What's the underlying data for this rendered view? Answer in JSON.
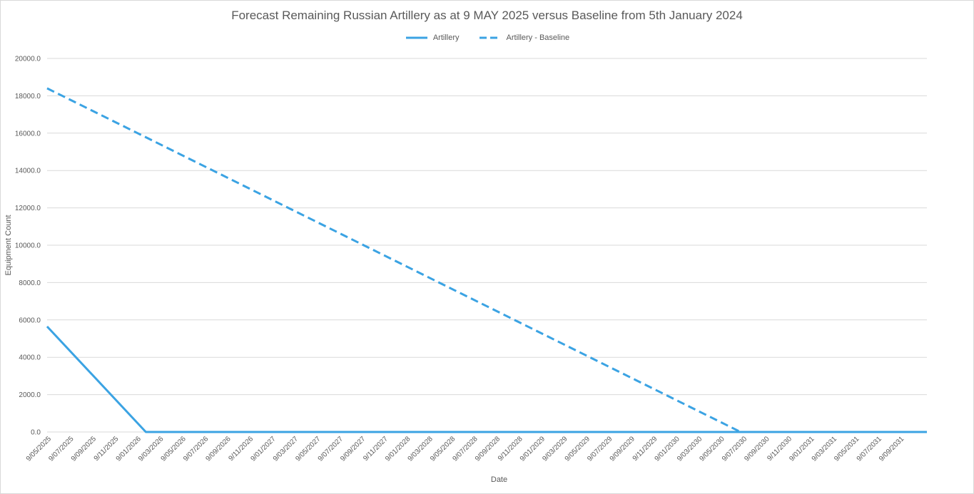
{
  "chart_data": {
    "type": "line",
    "title": "Forecast Remaining Russian Artillery as at 9 MAY 2025 versus Baseline from 5th January 2024",
    "xlabel": "Date",
    "ylabel": "Equipment Count",
    "ylim": [
      0,
      20000
    ],
    "yticks": [
      "0.0",
      "2000.0",
      "4000.0",
      "6000.0",
      "8000.0",
      "10000.0",
      "12000.0",
      "14000.0",
      "16000.0",
      "18000.0",
      "20000.0"
    ],
    "ytick_values": [
      0,
      2000,
      4000,
      6000,
      8000,
      10000,
      12000,
      14000,
      16000,
      18000,
      20000
    ],
    "categories": [
      "9/05/2025",
      "9/07/2025",
      "9/09/2025",
      "9/11/2025",
      "9/01/2026",
      "9/03/2026",
      "9/05/2026",
      "9/07/2026",
      "9/09/2026",
      "9/11/2026",
      "9/01/2027",
      "9/03/2027",
      "9/05/2027",
      "9/07/2027",
      "9/09/2027",
      "9/11/2027",
      "9/01/2028",
      "9/03/2028",
      "9/05/2028",
      "9/07/2028",
      "9/09/2028",
      "9/11/2028",
      "9/01/2029",
      "9/03/2029",
      "9/05/2029",
      "9/07/2029",
      "9/09/2029",
      "9/11/2029",
      "9/01/2030",
      "9/03/2030",
      "9/05/2030",
      "9/07/2030",
      "9/09/2030",
      "9/11/2030",
      "9/01/2031",
      "9/03/2031",
      "9/05/2031",
      "9/07/2031",
      "9/09/2031"
    ],
    "x_end_index": 39.2,
    "grid": true,
    "legend_position": "top",
    "series": [
      {
        "name": "Artillery",
        "style": "solid",
        "color": "#3ba3e3",
        "points": [
          [
            0,
            5650
          ],
          [
            4.4,
            0
          ],
          [
            39.2,
            0
          ]
        ]
      },
      {
        "name": "Artillery - Baseline",
        "style": "dashed",
        "color": "#3ba3e3",
        "points": [
          [
            0,
            18400
          ],
          [
            30.9,
            0
          ],
          [
            39.2,
            0
          ]
        ]
      }
    ]
  }
}
